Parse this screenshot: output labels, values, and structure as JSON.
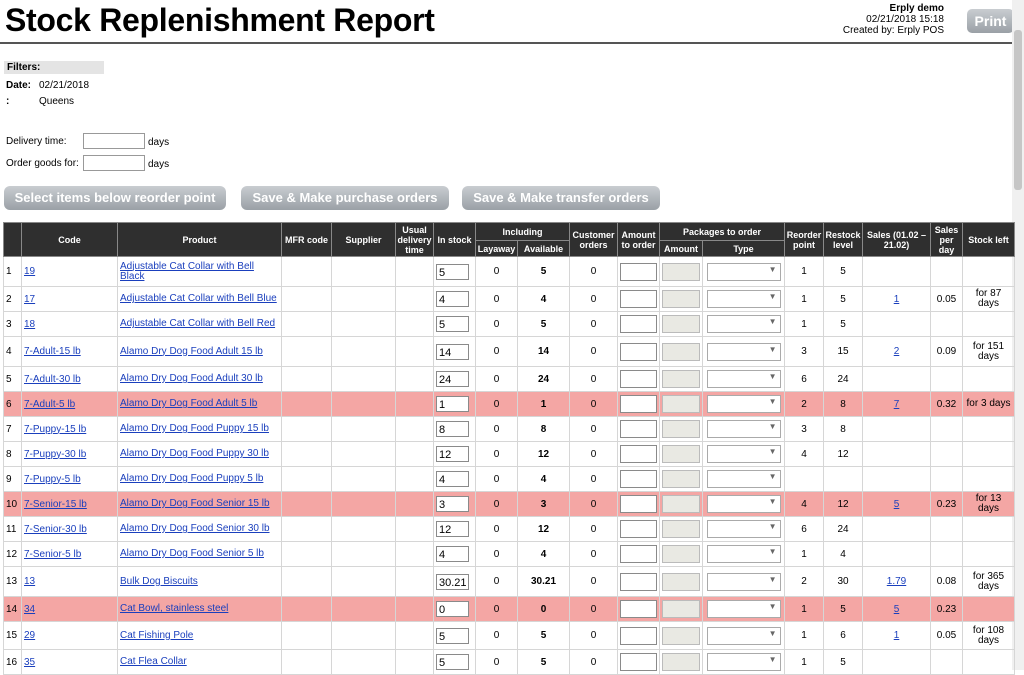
{
  "page": {
    "title": "Stock Replenishment Report",
    "company": "Erply demo",
    "date": "02/21/2018 15:18",
    "created_by": "Created by: Erply POS",
    "print_label": "Print"
  },
  "filters": {
    "header": "Filters:",
    "date_label": "Date:",
    "date_value": "02/21/2018",
    "location_label": ":",
    "location_value": "Queens"
  },
  "form": {
    "delivery_label": "Delivery time:",
    "delivery_unit": "days",
    "order_label": "Order goods for:",
    "order_unit": "days"
  },
  "buttons": {
    "select_below": "Select items below reorder point",
    "save_purchase": "Save & Make purchase orders",
    "save_transfer": "Save & Make transfer orders"
  },
  "table": {
    "headers": {
      "code": "Code",
      "product": "Product",
      "mfr": "MFR code",
      "supplier": "Supplier",
      "usual_delivery": "Usual delivery time",
      "in_stock": "In stock",
      "including": "Including",
      "layaway": "Layaway",
      "available": "Available",
      "customer_orders": "Customer orders",
      "amount_to_order": "Amount to order",
      "packages": "Packages to order",
      "amount": "Amount",
      "type": "Type",
      "reorder": "Reorder point",
      "restock": "Restock level",
      "sales": "Sales (01.02 – 21.02)",
      "sales_per_day": "Sales per day",
      "stock_left": "Stock left"
    },
    "rows": [
      {
        "n": "1",
        "code": "19",
        "product": "Adjustable Cat Collar with Bell Black",
        "in_stock": "5",
        "layaway": "0",
        "available": "5",
        "customer": "0",
        "reorder": "1",
        "restock": "5",
        "sales": "",
        "spd": "",
        "left": "",
        "low": false
      },
      {
        "n": "2",
        "code": "17",
        "product": "Adjustable Cat Collar with Bell Blue",
        "in_stock": "4",
        "layaway": "0",
        "available": "4",
        "customer": "0",
        "reorder": "1",
        "restock": "5",
        "sales": "1",
        "spd": "0.05",
        "left": "for 87 days",
        "low": false
      },
      {
        "n": "3",
        "code": "18",
        "product": "Adjustable Cat Collar with Bell Red",
        "in_stock": "5",
        "layaway": "0",
        "available": "5",
        "customer": "0",
        "reorder": "1",
        "restock": "5",
        "sales": "",
        "spd": "",
        "left": "",
        "low": false
      },
      {
        "n": "4",
        "code": "7-Adult-15 lb",
        "product": "Alamo Dry Dog Food Adult 15 lb",
        "in_stock": "14",
        "layaway": "0",
        "available": "14",
        "customer": "0",
        "reorder": "3",
        "restock": "15",
        "sales": "2",
        "spd": "0.09",
        "left": "for 151 days",
        "low": false
      },
      {
        "n": "5",
        "code": "7-Adult-30 lb",
        "product": "Alamo Dry Dog Food Adult 30 lb",
        "in_stock": "24",
        "layaway": "0",
        "available": "24",
        "customer": "0",
        "reorder": "6",
        "restock": "24",
        "sales": "",
        "spd": "",
        "left": "",
        "low": false
      },
      {
        "n": "6",
        "code": "7-Adult-5 lb",
        "product": "Alamo Dry Dog Food Adult 5 lb",
        "in_stock": "1",
        "layaway": "0",
        "available": "1",
        "customer": "0",
        "reorder": "2",
        "restock": "8",
        "sales": "7",
        "spd": "0.32",
        "left": "for 3 days",
        "low": true
      },
      {
        "n": "7",
        "code": "7-Puppy-15 lb",
        "product": "Alamo Dry Dog Food Puppy 15 lb",
        "in_stock": "8",
        "layaway": "0",
        "available": "8",
        "customer": "0",
        "reorder": "3",
        "restock": "8",
        "sales": "",
        "spd": "",
        "left": "",
        "low": false
      },
      {
        "n": "8",
        "code": "7-Puppy-30 lb",
        "product": "Alamo Dry Dog Food Puppy 30 lb",
        "in_stock": "12",
        "layaway": "0",
        "available": "12",
        "customer": "0",
        "reorder": "4",
        "restock": "12",
        "sales": "",
        "spd": "",
        "left": "",
        "low": false
      },
      {
        "n": "9",
        "code": "7-Puppy-5 lb",
        "product": "Alamo Dry Dog Food Puppy 5 lb",
        "in_stock": "4",
        "layaway": "0",
        "available": "4",
        "customer": "0",
        "reorder": "",
        "restock": "",
        "sales": "",
        "spd": "",
        "left": "",
        "low": false
      },
      {
        "n": "10",
        "code": "7-Senior-15 lb",
        "product": "Alamo Dry Dog Food Senior 15 lb",
        "in_stock": "3",
        "layaway": "0",
        "available": "3",
        "customer": "0",
        "reorder": "4",
        "restock": "12",
        "sales": "5",
        "spd": "0.23",
        "left": "for 13 days",
        "low": true
      },
      {
        "n": "11",
        "code": "7-Senior-30 lb",
        "product": "Alamo Dry Dog Food Senior 30 lb",
        "in_stock": "12",
        "layaway": "0",
        "available": "12",
        "customer": "0",
        "reorder": "6",
        "restock": "24",
        "sales": "",
        "spd": "",
        "left": "",
        "low": false
      },
      {
        "n": "12",
        "code": "7-Senior-5 lb",
        "product": "Alamo Dry Dog Food Senior 5 lb",
        "in_stock": "4",
        "layaway": "0",
        "available": "4",
        "customer": "0",
        "reorder": "1",
        "restock": "4",
        "sales": "",
        "spd": "",
        "left": "",
        "low": false
      },
      {
        "n": "13",
        "code": "13",
        "product": "Bulk Dog Biscuits",
        "in_stock": "30.21",
        "layaway": "0",
        "available": "30.21",
        "customer": "0",
        "reorder": "2",
        "restock": "30",
        "sales": "1.79",
        "spd": "0.08",
        "left": "for 365 days",
        "low": false
      },
      {
        "n": "14",
        "code": "34",
        "product": "Cat Bowl, stainless steel",
        "in_stock": "0",
        "layaway": "0",
        "available": "0",
        "customer": "0",
        "reorder": "1",
        "restock": "5",
        "sales": "5",
        "spd": "0.23",
        "left": "",
        "low": true
      },
      {
        "n": "15",
        "code": "29",
        "product": "Cat Fishing Pole",
        "in_stock": "5",
        "layaway": "0",
        "available": "5",
        "customer": "0",
        "reorder": "1",
        "restock": "6",
        "sales": "1",
        "spd": "0.05",
        "left": "for 108 days",
        "low": false
      },
      {
        "n": "16",
        "code": "35",
        "product": "Cat Flea Collar",
        "in_stock": "5",
        "layaway": "0",
        "available": "5",
        "customer": "0",
        "reorder": "1",
        "restock": "5",
        "sales": "",
        "spd": "",
        "left": "",
        "low": false
      }
    ]
  }
}
